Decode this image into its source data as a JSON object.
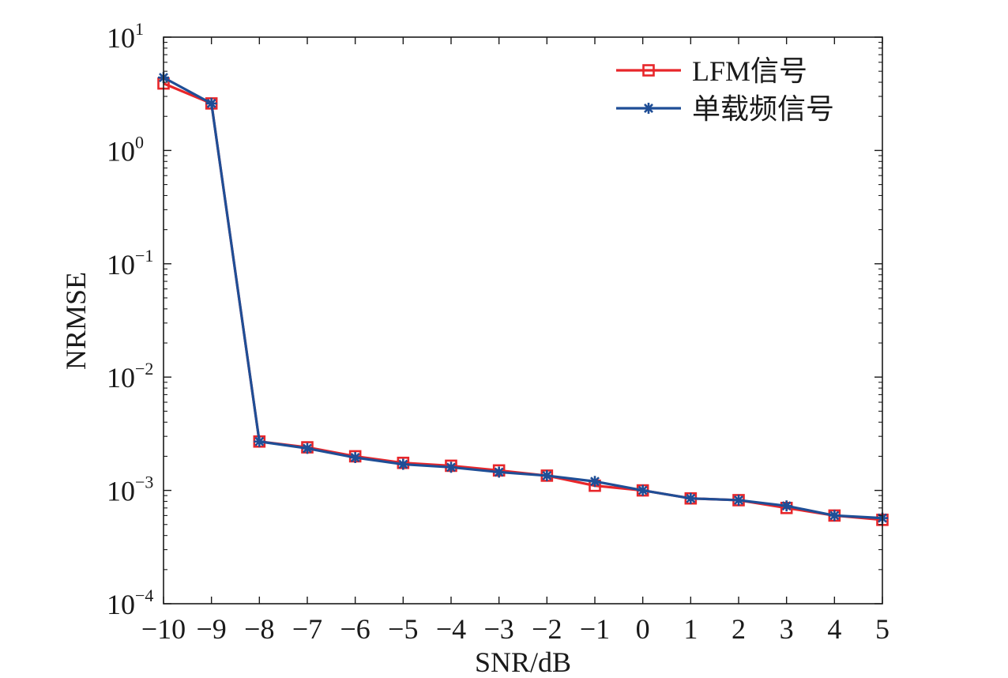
{
  "chart_data": {
    "type": "line",
    "title": "",
    "xlabel": "SNR/dB",
    "ylabel": "NRMSE",
    "yscale": "log",
    "xlim": [
      -10,
      5
    ],
    "ylim": [
      0.0001,
      10
    ],
    "x": [
      -10,
      -9,
      -8,
      -7,
      -6,
      -5,
      -4,
      -3,
      -2,
      -1,
      0,
      1,
      2,
      3,
      4,
      5
    ],
    "x_tick_labels": [
      "−10",
      "−9",
      "−8",
      "−7",
      "−6",
      "−5",
      "−4",
      "−3",
      "−2",
      "−1",
      "0",
      "1",
      "2",
      "3",
      "4",
      "5"
    ],
    "y_ticks": [
      {
        "value": 10,
        "base": "10",
        "exp": "1"
      },
      {
        "value": 1,
        "base": "10",
        "exp": "0"
      },
      {
        "value": 0.1,
        "base": "10",
        "exp": "−1"
      },
      {
        "value": 0.01,
        "base": "10",
        "exp": "−2"
      },
      {
        "value": 0.001,
        "base": "10",
        "exp": "−3"
      },
      {
        "value": 0.0001,
        "base": "10",
        "exp": "−4"
      }
    ],
    "grid": false,
    "legend_position": "top-right",
    "series": [
      {
        "name": "LFM信号",
        "color": "#e8262a",
        "marker": "square",
        "values": [
          3.9,
          2.6,
          0.0027,
          0.0024,
          0.002,
          0.00175,
          0.00165,
          0.0015,
          0.00135,
          0.0011,
          0.001,
          0.00085,
          0.00082,
          0.0007,
          0.0006,
          0.00055
        ]
      },
      {
        "name": "单载频信号",
        "color": "#1f4e96",
        "marker": "star",
        "values": [
          4.4,
          2.6,
          0.0027,
          0.00235,
          0.00195,
          0.0017,
          0.0016,
          0.00145,
          0.00135,
          0.0012,
          0.001,
          0.00085,
          0.00082,
          0.00073,
          0.0006,
          0.00057
        ]
      }
    ]
  }
}
